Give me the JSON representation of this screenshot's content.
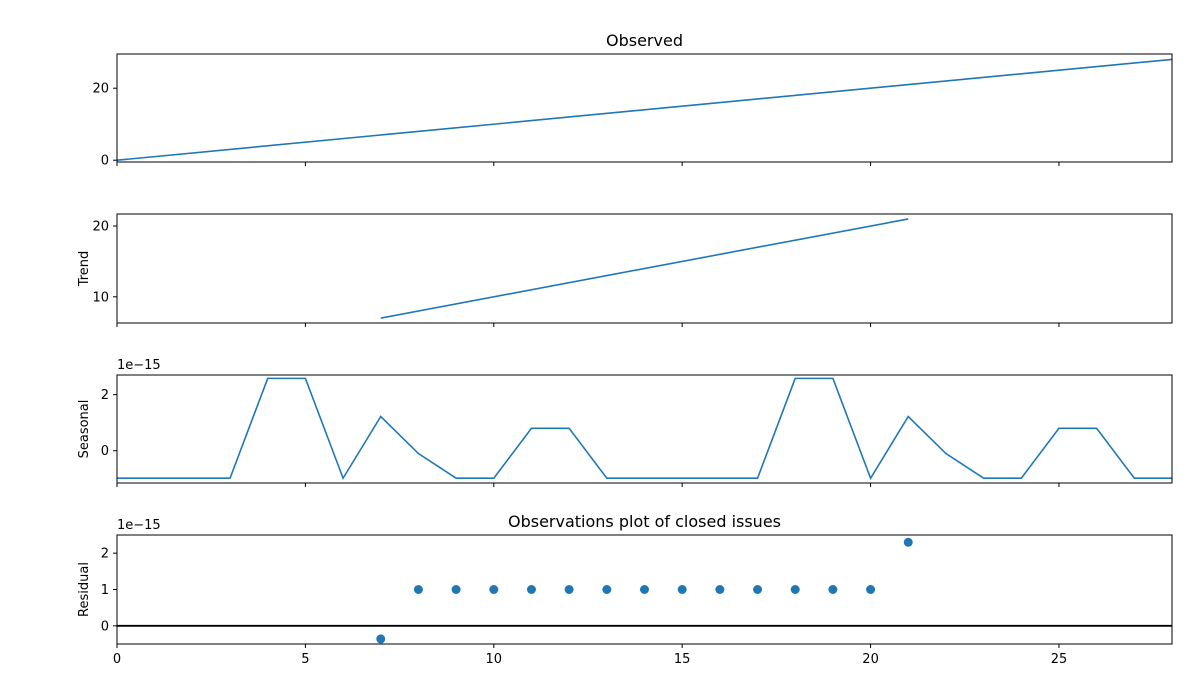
{
  "chart_data": [
    {
      "type": "line",
      "title": "Observed",
      "ylabel": "",
      "exponent_label": "",
      "xlim": [
        0,
        28
      ],
      "ylim": [
        -0.5,
        29.5
      ],
      "yticks": [
        0,
        20
      ],
      "x": [
        0,
        28
      ],
      "values": [
        0,
        28
      ]
    },
    {
      "type": "line",
      "title": "",
      "ylabel": "Trend",
      "exponent_label": "",
      "xlim": [
        0,
        28
      ],
      "ylim": [
        6.3,
        21.7
      ],
      "yticks": [
        10,
        20
      ],
      "x": [
        7,
        21
      ],
      "values": [
        7,
        21
      ]
    },
    {
      "type": "line",
      "title": "",
      "ylabel": "Seasonal",
      "exponent_label": "1e−15",
      "xlim": [
        0,
        28
      ],
      "ylim": [
        -1.15,
        2.7
      ],
      "yticks": [
        0,
        2
      ],
      "x": [
        0,
        1,
        2,
        3,
        4,
        5,
        6,
        7,
        8,
        9,
        10,
        11,
        12,
        13,
        14,
        15,
        16,
        17,
        18,
        19,
        20,
        21,
        22,
        23,
        24,
        25,
        26,
        27,
        28
      ],
      "values": [
        -0.98,
        -0.98,
        -0.98,
        -0.98,
        2.58,
        2.58,
        -0.98,
        1.22,
        -0.1,
        -0.98,
        -0.98,
        0.8,
        0.8,
        -0.98,
        -0.98,
        -0.98,
        -0.98,
        -0.98,
        2.58,
        2.58,
        -0.98,
        1.22,
        -0.1,
        -0.98,
        -0.98,
        0.8,
        0.8,
        -0.98,
        -0.98
      ]
    },
    {
      "type": "scatter",
      "title": "Observations plot of closed issues",
      "ylabel": "Residual",
      "exponent_label": "1e−15",
      "xlim": [
        0,
        28
      ],
      "ylim": [
        -0.5,
        2.5
      ],
      "yticks": [
        0,
        1,
        2
      ],
      "xticks": [
        0,
        5,
        10,
        15,
        20,
        25
      ],
      "x": [
        7,
        8,
        9,
        10,
        11,
        12,
        13,
        14,
        15,
        16,
        17,
        18,
        19,
        20,
        21
      ],
      "values": [
        -0.36,
        1,
        1,
        1,
        1,
        1,
        1,
        1,
        1,
        1,
        1,
        1,
        1,
        1,
        2.3
      ],
      "zero_line": 0
    }
  ],
  "colors": {
    "series": "#1f77b4",
    "axis": "#000000",
    "zero_line": "#000000"
  }
}
